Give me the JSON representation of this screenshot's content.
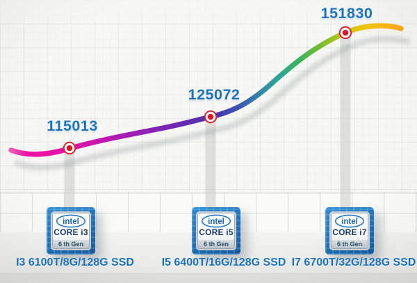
{
  "chart_data": {
    "type": "line",
    "title": "",
    "categories": [
      "I3 6100T/8G/128G SSD",
      "I5 6400T/16G/128G SSD",
      "I7 6700T/32G/128G SSD"
    ],
    "values": [
      115013,
      125072,
      151830
    ],
    "legend": "none",
    "grid": true,
    "value_label_color": "#1c73b9",
    "marker_color": "#d31a28",
    "line_gradient_stops": [
      {
        "offset": "0%",
        "color": "#f25cb5"
      },
      {
        "offset": "4%",
        "color": "#ee11a3"
      },
      {
        "offset": "15%",
        "color": "#e414a6"
      },
      {
        "offset": "24%",
        "color": "#bd18af"
      },
      {
        "offset": "34%",
        "color": "#9220b6"
      },
      {
        "offset": "44%",
        "color": "#6829b2"
      },
      {
        "offset": "52%",
        "color": "#4a34ad"
      },
      {
        "offset": "58%",
        "color": "#3f51b3"
      },
      {
        "offset": "64%",
        "color": "#3389a8"
      },
      {
        "offset": "69%",
        "color": "#2ca892"
      },
      {
        "offset": "74%",
        "color": "#3db35b"
      },
      {
        "offset": "80%",
        "color": "#7cc02b"
      },
      {
        "offset": "86%",
        "color": "#cfc40d"
      },
      {
        "offset": "91%",
        "color": "#eec40a"
      },
      {
        "offset": "96%",
        "color": "#f7b40e"
      },
      {
        "offset": "100%",
        "color": "#f5a51f"
      }
    ]
  },
  "badges": [
    {
      "brand": "intel",
      "core": "CORE i3",
      "gen": "6 th Gen"
    },
    {
      "brand": "intel",
      "core": "CORE i5",
      "gen": "6 th Gen"
    },
    {
      "brand": "intel",
      "core": "CORE i7",
      "gen": "6 th Gen"
    }
  ]
}
